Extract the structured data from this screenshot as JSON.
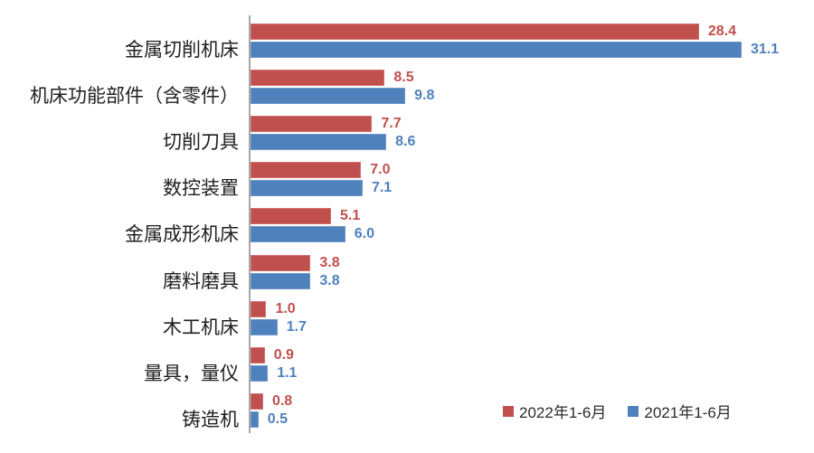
{
  "chart_data": {
    "type": "bar",
    "orientation": "horizontal",
    "title": "",
    "xlabel": "",
    "ylabel": "",
    "grid": false,
    "xlim": [
      0,
      35
    ],
    "legend_position": "bottom-right",
    "data_labels": true,
    "categories": [
      "金属切削机床",
      "机床功能部件（含零件）",
      "切削刀具",
      "数控装置",
      "金属成形机床",
      "磨料磨具",
      "木工机床",
      "量具，量仪",
      "铸造机"
    ],
    "series": [
      {
        "name": "2022年1-6月",
        "color": "#c0504d",
        "values": [
          28.4,
          8.5,
          7.7,
          7.0,
          5.1,
          3.8,
          1.0,
          0.9,
          0.8
        ]
      },
      {
        "name": "2021年1-6月",
        "color": "#4f81bd",
        "values": [
          31.1,
          9.8,
          8.6,
          7.1,
          6.0,
          3.8,
          1.7,
          1.1,
          0.5
        ]
      }
    ],
    "colors": {
      "axis_line": "#a6a6a6",
      "category_text": "#1f1f1f",
      "legend_text": "#2b2b2b",
      "background": "#ffffff"
    }
  }
}
